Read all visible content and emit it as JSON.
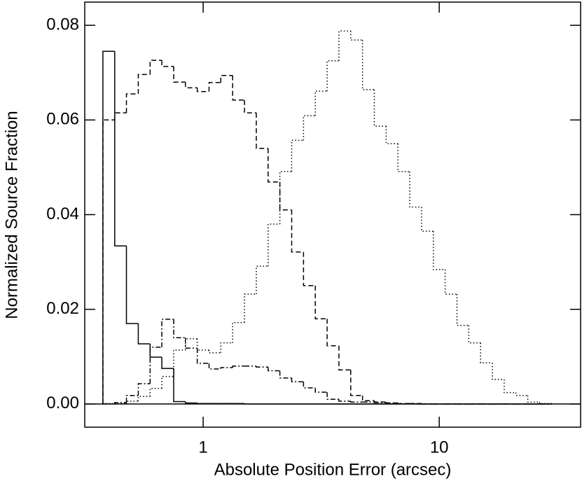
{
  "chart_data": {
    "type": "histogram",
    "xlabel": "Absolute Position Error (arcsec)",
    "ylabel": "Normalized Source Fraction",
    "xscale": "log",
    "xlim": [
      0.315,
      39.7
    ],
    "ylim": [
      -0.0049,
      0.0849
    ],
    "xticks": [
      1,
      10
    ],
    "yticks": [
      {
        "value": 0,
        "label": "0.00"
      },
      0.02,
      0.04,
      0.06,
      0.08
    ],
    "zero_line": true,
    "bins": [
      0.376,
      0.422,
      0.473,
      0.531,
      0.596,
      0.668,
      0.75,
      0.841,
      0.944,
      1.059,
      1.188,
      1.333,
      1.496,
      1.679,
      1.884,
      2.113,
      2.371,
      2.661,
      2.985,
      3.35,
      3.758,
      4.217,
      4.732,
      5.309,
      5.957,
      6.683,
      7.499,
      8.414,
      9.441,
      10.59,
      11.89,
      13.34,
      14.96,
      16.79,
      18.84,
      21.13,
      23.71,
      26.61,
      29.85
    ],
    "series": [
      {
        "color": "#000000",
        "linestyle": "solid",
        "values": [
          0.0745,
          0.0334,
          0.017,
          0.0127,
          0.0099,
          0.0075,
          0.0005,
          0.0002,
          0.0001,
          0.0001,
          0.0001,
          0.0001,
          0,
          0,
          0,
          0,
          0,
          0,
          0,
          0,
          0,
          0,
          0,
          0,
          0,
          0,
          0,
          0,
          0,
          0,
          0,
          0,
          0,
          0,
          0,
          0,
          0,
          0
        ]
      },
      {
        "color": "#000000",
        "linestyle": "dashed",
        "values": [
          0.06,
          0.0615,
          0.0655,
          0.0696,
          0.0726,
          0.0713,
          0.068,
          0.0668,
          0.066,
          0.0679,
          0.0694,
          0.0642,
          0.0615,
          0.054,
          0.0469,
          0.041,
          0.0321,
          0.025,
          0.018,
          0.0123,
          0.0072,
          0.0018,
          0.0007,
          0.0004,
          0.0002,
          0.0001,
          0.0001,
          0,
          0,
          0,
          0,
          0,
          0,
          0,
          0,
          0,
          0,
          0
        ]
      },
      {
        "color": "#000000",
        "linestyle": "dashdot",
        "values": [
          0,
          0.0003,
          0.0018,
          0.0043,
          0.012,
          0.0179,
          0.014,
          0.0118,
          0.0086,
          0.0074,
          0.0077,
          0.008,
          0.008,
          0.0078,
          0.007,
          0.0055,
          0.0047,
          0.0034,
          0.0025,
          0.001,
          0.0006,
          0.0004,
          0.0004,
          0.0003,
          0.0002,
          0.0001,
          0.0001,
          0,
          0,
          0,
          0,
          0,
          0,
          0,
          0,
          0,
          0,
          0
        ]
      },
      {
        "color": "#000000",
        "linestyle": "dotted",
        "values": [
          0.0001,
          0.0001,
          0.0006,
          0.0016,
          0.0033,
          0.0058,
          0.0114,
          0.0138,
          0.0114,
          0.0108,
          0.0129,
          0.0172,
          0.0232,
          0.0291,
          0.038,
          0.0491,
          0.0557,
          0.0609,
          0.0661,
          0.0725,
          0.0788,
          0.0769,
          0.0664,
          0.0587,
          0.055,
          0.0491,
          0.0416,
          0.0365,
          0.0284,
          0.0232,
          0.0166,
          0.0129,
          0.0087,
          0.0052,
          0.0024,
          0.0018,
          0.0004,
          0.0001
        ]
      }
    ]
  }
}
